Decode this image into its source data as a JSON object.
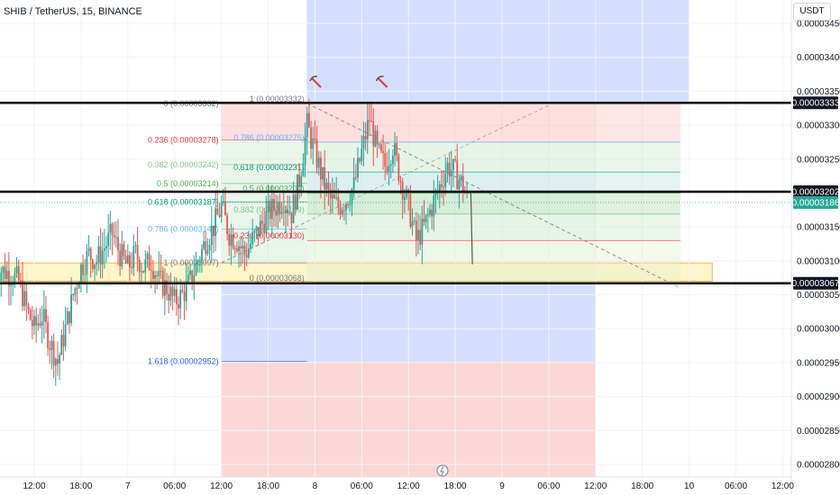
{
  "header": {
    "symbol": "SHIB / TetherUS, 15, BINANCE"
  },
  "currency": "USDT",
  "colors": {
    "up": "#26a69a",
    "down": "#ef5350",
    "blue_zone": "#9fb7ff",
    "red_zone": "#f8b7b5",
    "yellow_zone": "#fff3b8",
    "badge": "#131722",
    "last_price_badge": "#26a69a"
  },
  "chart_data": {
    "type": "candlestick",
    "title": "SHIB / TetherUS, 15, BINANCE",
    "ylim": [
      2.78e-05,
      3.47e-05
    ],
    "y_ticks": [
      {
        "value": 3.45e-05,
        "label": "0.00003450"
      },
      {
        "value": 3.4e-05,
        "label": "0.00003400"
      },
      {
        "value": 3.35e-05,
        "label": "0.00003350"
      },
      {
        "value": 3.3e-05,
        "label": "0.00003300"
      },
      {
        "value": 3.25e-05,
        "label": "0.00003250"
      },
      {
        "value": 3.2e-05,
        "label": "0.00003200"
      },
      {
        "value": 3.15e-05,
        "label": "0.00003150"
      },
      {
        "value": 3.1e-05,
        "label": "0.00003100"
      },
      {
        "value": 3.05e-05,
        "label": "0.00003050"
      },
      {
        "value": 3e-05,
        "label": "0.00003000"
      },
      {
        "value": 2.95e-05,
        "label": "0.00002950"
      },
      {
        "value": 2.9e-05,
        "label": "0.00002900"
      },
      {
        "value": 2.85e-05,
        "label": "0.00002850"
      },
      {
        "value": 2.8e-05,
        "label": "0.00002800"
      }
    ],
    "x_ticks": [
      {
        "hours": 12,
        "label": "12:00"
      },
      {
        "hours": 18,
        "label": "18:00"
      },
      {
        "hours": 24,
        "label": "7"
      },
      {
        "hours": 30,
        "label": "06:00"
      },
      {
        "hours": 36,
        "label": "12:00"
      },
      {
        "hours": 42,
        "label": "18:00"
      },
      {
        "hours": 48,
        "label": "8"
      },
      {
        "hours": 54,
        "label": "06:00"
      },
      {
        "hours": 60,
        "label": "12:00"
      },
      {
        "hours": 66,
        "label": "18:00"
      },
      {
        "hours": 72,
        "label": "9"
      },
      {
        "hours": 78,
        "label": "06:00"
      },
      {
        "hours": 84,
        "label": "12:00"
      },
      {
        "hours": 90,
        "label": "18:00"
      },
      {
        "hours": 96,
        "label": "10"
      },
      {
        "hours": 102,
        "label": "06:00"
      },
      {
        "hours": 108,
        "label": "12:00"
      }
    ],
    "close_path": [
      [
        7.0,
        3.09e-05
      ],
      [
        9.0,
        3.08e-05
      ],
      [
        10.0,
        3.07e-05
      ],
      [
        11.0,
        3.03e-05
      ],
      [
        12.0,
        3e-05
      ],
      [
        13.0,
        3.02e-05
      ],
      [
        14.0,
        2.98e-05
      ],
      [
        15.0,
        2.95e-05
      ],
      [
        16.0,
        3e-05
      ],
      [
        17.0,
        3.05e-05
      ],
      [
        18.0,
        3.09e-05
      ],
      [
        19.0,
        3.11e-05
      ],
      [
        20.0,
        3.1e-05
      ],
      [
        21.0,
        3.12e-05
      ],
      [
        22.0,
        3.14e-05
      ],
      [
        23.0,
        3.11e-05
      ],
      [
        24.0,
        3.09e-05
      ],
      [
        25.0,
        3.11e-05
      ],
      [
        26.0,
        3.09e-05
      ],
      [
        27.0,
        3.1e-05
      ],
      [
        28.0,
        3.07e-05
      ],
      [
        29.0,
        3.06e-05
      ],
      [
        30.0,
        3.04e-05
      ],
      [
        31.0,
        3.05e-05
      ],
      [
        32.0,
        3.07e-05
      ],
      [
        33.0,
        3.1e-05
      ],
      [
        34.0,
        3.13e-05
      ],
      [
        35.0,
        3.15e-05
      ],
      [
        36.0,
        3.18e-05
      ],
      [
        37.0,
        3.14e-05
      ],
      [
        38.0,
        3.13e-05
      ],
      [
        39.0,
        3.11e-05
      ],
      [
        40.0,
        3.13e-05
      ],
      [
        41.0,
        3.15e-05
      ],
      [
        42.0,
        3.17e-05
      ],
      [
        43.0,
        3.18e-05
      ],
      [
        44.0,
        3.19e-05
      ],
      [
        45.0,
        3.17e-05
      ],
      [
        46.0,
        3.22e-05
      ],
      [
        47.0,
        3.3e-05
      ],
      [
        48.0,
        3.26e-05
      ],
      [
        49.0,
        3.22e-05
      ],
      [
        50.0,
        3.19e-05
      ],
      [
        51.0,
        3.18e-05
      ],
      [
        52.0,
        3.19e-05
      ],
      [
        53.0,
        3.21e-05
      ],
      [
        54.0,
        3.26e-05
      ],
      [
        55.0,
        3.31e-05
      ],
      [
        56.0,
        3.26e-05
      ],
      [
        57.0,
        3.24e-05
      ],
      [
        58.0,
        3.27e-05
      ],
      [
        59.0,
        3.22e-05
      ],
      [
        60.0,
        3.18e-05
      ],
      [
        61.0,
        3.13e-05
      ],
      [
        62.0,
        3.15e-05
      ],
      [
        63.0,
        3.18e-05
      ],
      [
        64.0,
        3.21e-05
      ],
      [
        65.0,
        3.24e-05
      ],
      [
        66.0,
        3.23e-05
      ],
      [
        67.0,
        3.21e-05
      ],
      [
        67.5,
        3.19e-05
      ]
    ],
    "horizontal_levels": [
      {
        "value": 3.333e-05,
        "label": "0.00003333"
      },
      {
        "value": 3.202e-05,
        "label": "0.00003202"
      },
      {
        "value": 3.067e-05,
        "label": "0.00003067"
      }
    ],
    "last_price": {
      "value": 3.186e-05,
      "label": "0.00003186"
    },
    "fib_left": {
      "hours_start": 36,
      "hours_end": 47,
      "levels": [
        {
          "value": 3.332e-05,
          "label": "0 (0.00003332)",
          "color": "#787b86"
        },
        {
          "value": 3.278e-05,
          "label": "0.236 (0.00003278)",
          "color": "#f23645"
        },
        {
          "value": 3.242e-05,
          "label": "0.382 (0.00003242)",
          "color": "#81c784"
        },
        {
          "value": 3.214e-05,
          "label": "0.5 (0.00003214)",
          "color": "#4caf50"
        },
        {
          "value": 3.187e-05,
          "label": "0.618 (0.00003187)",
          "color": "#089981"
        },
        {
          "value": 3.147e-05,
          "label": "0.786 (0.00003147)",
          "color": "#64b5f6"
        },
        {
          "value": 3.097e-05,
          "label": "1 (0.00003097)",
          "color": "#787b86"
        },
        {
          "value": 2.952e-05,
          "label": "1.618 (0.00002952)",
          "color": "#2962ff"
        }
      ]
    },
    "fib_right": {
      "hours_start": 47,
      "hours_end": 84,
      "levels": [
        {
          "value": 3.332e-05,
          "label": "1 (0.00003332)",
          "color": "#787b86"
        },
        {
          "value": 3.275e-05,
          "label": "0.786 (0.00003275)",
          "color": "#64b5f6"
        },
        {
          "value": 3.231e-05,
          "label": "0.618 (0.00003231)",
          "color": "#089981"
        },
        {
          "value": 3.2e-05,
          "label": "0.5 (0.00003200)",
          "color": "#4caf50"
        },
        {
          "value": 3.169e-05,
          "label": "0.382 (0.00003169)",
          "color": "#81c784"
        },
        {
          "value": 3.13e-05,
          "label": "0.236 (0.00003130)",
          "color": "#f23645"
        },
        {
          "value": 3.068e-05,
          "label": "0 (0.00003068)",
          "color": "#787b86"
        }
      ]
    },
    "blue_zone": {
      "hours_start": 47,
      "hours_end": 96,
      "y_top": 3.47e-05,
      "y_bottom": 3.332e-05
    },
    "blue_zone_lower": {
      "hours_start": 36,
      "hours_end": 84,
      "y_top": 3.068e-05,
      "y_bottom": 2.952e-05
    },
    "red_zone_lower": {
      "hours_start": 36,
      "hours_end": 84,
      "y_top": 2.952e-05,
      "y_bottom": 2.78e-05
    },
    "yellow_zone": {
      "hours_start": 0,
      "hours_end": 108,
      "y_top": 3.097e-05,
      "y_bottom": 3.07e-05
    },
    "flag_markers": [
      {
        "hours": 47.5
      },
      {
        "hours": 56
      }
    ]
  }
}
